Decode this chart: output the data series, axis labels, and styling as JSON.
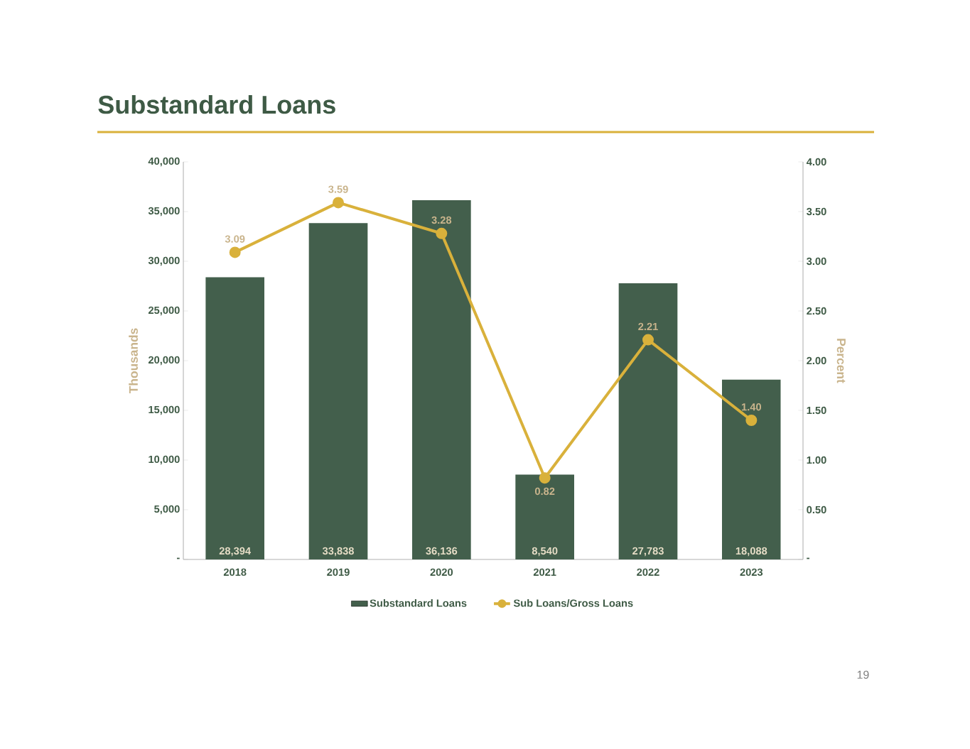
{
  "chart_data": {
    "type": "bar",
    "title": "Substandard Loans",
    "categories": [
      "2018",
      "2019",
      "2020",
      "2021",
      "2022",
      "2023"
    ],
    "series": [
      {
        "name": "Substandard Loans",
        "color": "#435f4c",
        "values": [
          28394,
          33838,
          36136,
          8540,
          27783,
          18088
        ],
        "value_labels": [
          "28,394",
          "33,838",
          "36,136",
          "8,540",
          "27,783",
          "18,088"
        ]
      },
      {
        "name": "Sub Loans/Gross Loans",
        "type": "line",
        "axis": "y2",
        "color": "#d9b13b",
        "marker": "circle",
        "values": [
          3.09,
          3.59,
          3.28,
          0.82,
          2.21,
          1.4
        ],
        "value_labels": [
          "3.09",
          "3.59",
          "3.28",
          "0.82",
          "2.21",
          "1.40"
        ]
      }
    ],
    "ylim": [
      0,
      40000
    ],
    "yticks": [
      {
        "value": 0,
        "label": "-"
      },
      {
        "value": 5000,
        "label": "5,000"
      },
      {
        "value": 10000,
        "label": "10,000"
      },
      {
        "value": 15000,
        "label": "15,000"
      },
      {
        "value": 20000,
        "label": "20,000"
      },
      {
        "value": 25000,
        "label": "25,000"
      },
      {
        "value": 30000,
        "label": "30,000"
      },
      {
        "value": 35000,
        "label": "35,000"
      },
      {
        "value": 40000,
        "label": "40,000"
      }
    ],
    "y2lim": [
      0,
      4
    ],
    "y2ticks": [
      {
        "value": 0,
        "label": "-"
      },
      {
        "value": 0.5,
        "label": "0.50"
      },
      {
        "value": 1,
        "label": "1.00"
      },
      {
        "value": 1.5,
        "label": "1.50"
      },
      {
        "value": 2,
        "label": "2.00"
      },
      {
        "value": 2.5,
        "label": "2.50"
      },
      {
        "value": 3,
        "label": "3.00"
      },
      {
        "value": 3.5,
        "label": "3.50"
      },
      {
        "value": 4,
        "label": "4.00"
      }
    ],
    "ylabel": "Thousands",
    "y2label": "Percent",
    "legend": "bottom",
    "grid": false,
    "annotations": [
      "19"
    ]
  }
}
